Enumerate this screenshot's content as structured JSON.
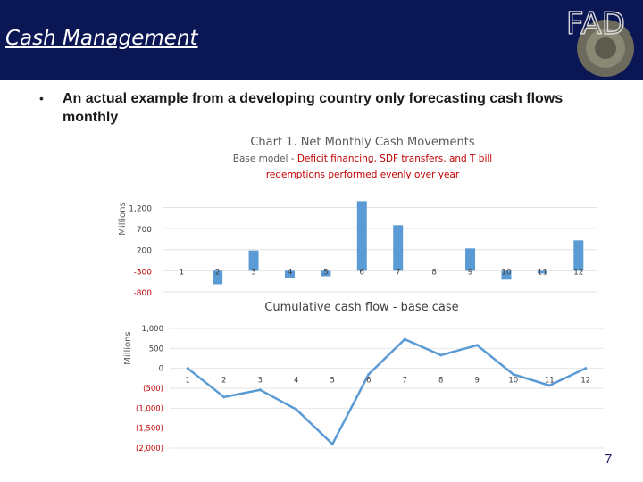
{
  "header": {
    "title": "Cash Management"
  },
  "logo": {
    "text": "FAD",
    "ring_text": "MONETARY FUND"
  },
  "bullet": {
    "text": "An actual example from a developing country only forecasting cash flows monthly"
  },
  "page_number": "7",
  "colors": {
    "header_bg": "#0b1654",
    "bar": "#5b9bd5",
    "line": "#5b9bd5",
    "red_labels": "#c00000"
  },
  "chart_data": [
    {
      "type": "bar",
      "title": "Chart 1. Net Monthly Cash Movements",
      "subtitle_prefix": "Base model - ",
      "subtitle_red": "Deficit financing, SDF transfers, and T bill redemptions  performed  evenly over year",
      "ylabel": "Millions",
      "categories": [
        "1",
        "2",
        "3",
        "4",
        "5",
        "6",
        "7",
        "8",
        "9",
        "10",
        "11",
        "12"
      ],
      "values": [
        0,
        -620,
        180,
        -470,
        -430,
        1350,
        780,
        -300,
        230,
        -510,
        -360,
        420
      ],
      "ylim": [
        -800,
        1400
      ],
      "yticks": [
        {
          "value": 1200,
          "label": "1,200",
          "red": false
        },
        {
          "value": 700,
          "label": "700",
          "red": false
        },
        {
          "value": 200,
          "label": "200",
          "red": false
        },
        {
          "value": -300,
          "label": "-300",
          "red": true
        },
        {
          "value": -800,
          "label": "-800",
          "red": true
        }
      ],
      "grid": true
    },
    {
      "type": "line",
      "title": "Cumulative cash flow - base case",
      "ylabel": "Millions",
      "x": [
        "1",
        "2",
        "3",
        "4",
        "5",
        "6",
        "7",
        "8",
        "9",
        "10",
        "11",
        "12"
      ],
      "values": [
        0,
        -720,
        -540,
        -1030,
        -1900,
        -150,
        730,
        330,
        580,
        -150,
        -430,
        0
      ],
      "ylim": [
        -2000,
        1000
      ],
      "yticks": [
        {
          "value": 1000,
          "label": "1,000",
          "red": false
        },
        {
          "value": 500,
          "label": "500",
          "red": false
        },
        {
          "value": 0,
          "label": "0",
          "red": false
        },
        {
          "value": -500,
          "label": "(500)",
          "red": true
        },
        {
          "value": -1000,
          "label": "(1,000)",
          "red": true
        },
        {
          "value": -1500,
          "label": "(1,500)",
          "red": true
        },
        {
          "value": -2000,
          "label": "(2,000)",
          "red": true
        }
      ],
      "grid": true
    }
  ]
}
